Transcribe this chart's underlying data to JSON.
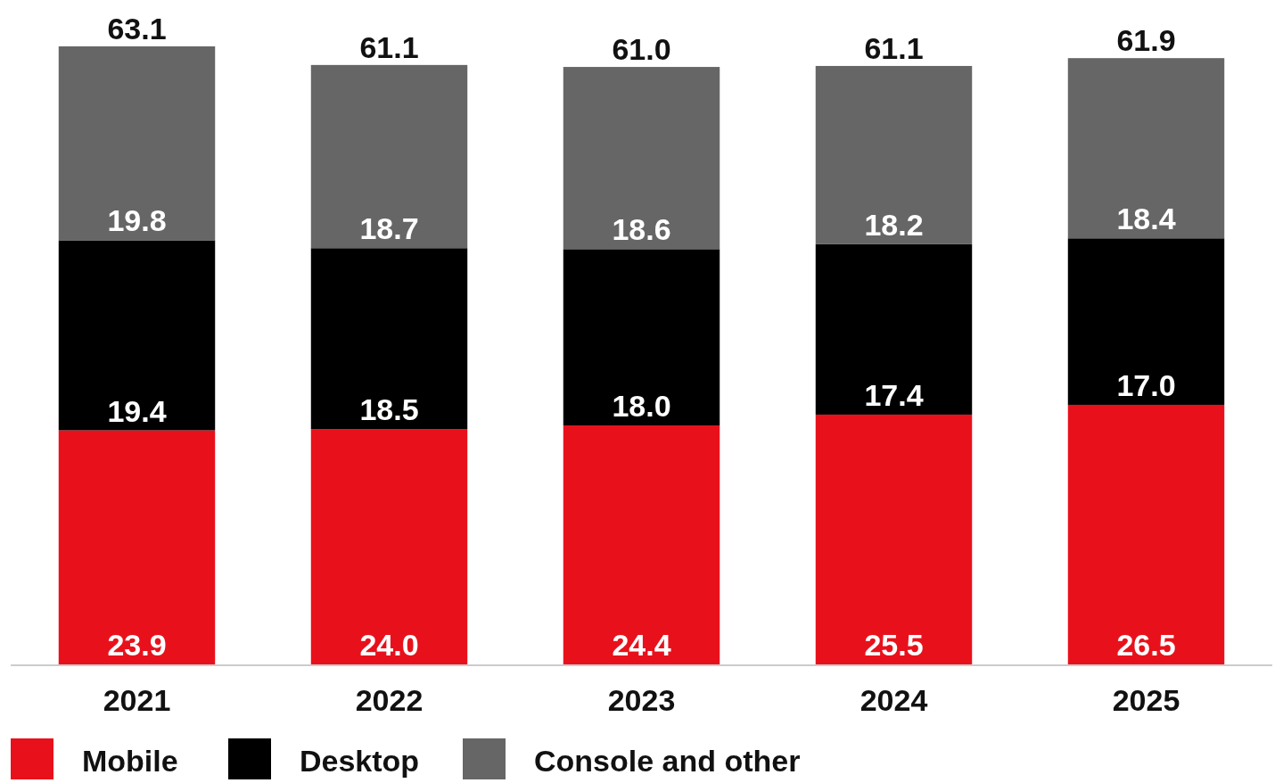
{
  "chart_data": {
    "type": "bar",
    "stacked": true,
    "legend": "bottom",
    "categories": [
      "2021",
      "2022",
      "2023",
      "2024",
      "2025"
    ],
    "series": [
      {
        "name": "Mobile",
        "color": "#e8111b",
        "values": [
          23.9,
          24.0,
          24.4,
          25.5,
          26.5
        ],
        "value_labels": [
          "23.9",
          "24.0",
          "24.4",
          "25.5",
          "26.5"
        ]
      },
      {
        "name": "Desktop",
        "color": "#000000",
        "values": [
          19.4,
          18.5,
          18.0,
          17.4,
          17.0
        ],
        "value_labels": [
          "19.4",
          "18.5",
          "18.0",
          "17.4",
          "17.0"
        ]
      },
      {
        "name": "Console and other",
        "color": "#666666",
        "values": [
          19.8,
          18.7,
          18.6,
          18.2,
          18.4
        ],
        "value_labels": [
          "19.8",
          "18.7",
          "18.6",
          "18.2",
          "18.4"
        ]
      }
    ],
    "totals": [
      "63.1",
      "61.1",
      "61.0",
      "61.1",
      "61.9"
    ]
  }
}
